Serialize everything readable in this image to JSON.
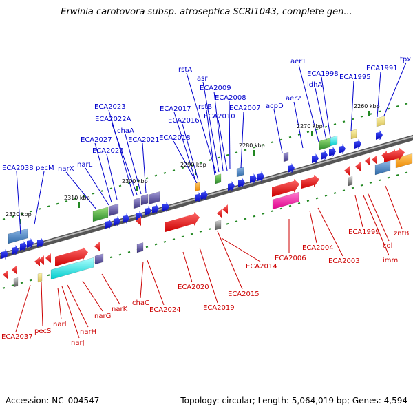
{
  "title": "Erwinia carotovora subsp. atroseptica SCRI1043, complete gen...",
  "footer": {
    "accession": "Accession: NC_004547",
    "info": "Topology: circular; Length: 5,064,019 bp; Genes: 4,594"
  },
  "colors": {
    "forward": "#0000cc",
    "reverse": "#cc0000",
    "backbone": "#888888",
    "ticks": "#228822"
  },
  "kbp_ticks": [
    "2320 kbp",
    "2310 kbp",
    "2300 kbp",
    "2290 kbp",
    "2280 kbp",
    "2270 kbp",
    "2260 kbp"
  ],
  "top_genes": [
    "ECA2038",
    "pecM",
    "narX",
    "narL",
    "ECA2027",
    "ECA2026",
    "ECA2023",
    "ECA2022A",
    "chaA",
    "ECA2021",
    "ECA2017",
    "ECA2016",
    "ECA2018",
    "rstA",
    "asr",
    "ECA2009",
    "rstB",
    "ECA2008",
    "ECA2010",
    "ECA2007",
    "acpD",
    "aer2",
    "aer1",
    "ECA1998",
    "ldhA",
    "ECA1995",
    "ECA1991",
    "tpx"
  ],
  "bottom_genes": [
    "ECA2037",
    "pecS",
    "narI",
    "narJ",
    "narH",
    "narG",
    "narK",
    "chaC",
    "ECA2024",
    "ECA2020",
    "ECA2019",
    "ECA2015",
    "ECA2014",
    "ECA2006",
    "ECA2004",
    "ECA2003",
    "ECA1999",
    "col",
    "imm",
    "zntB"
  ]
}
